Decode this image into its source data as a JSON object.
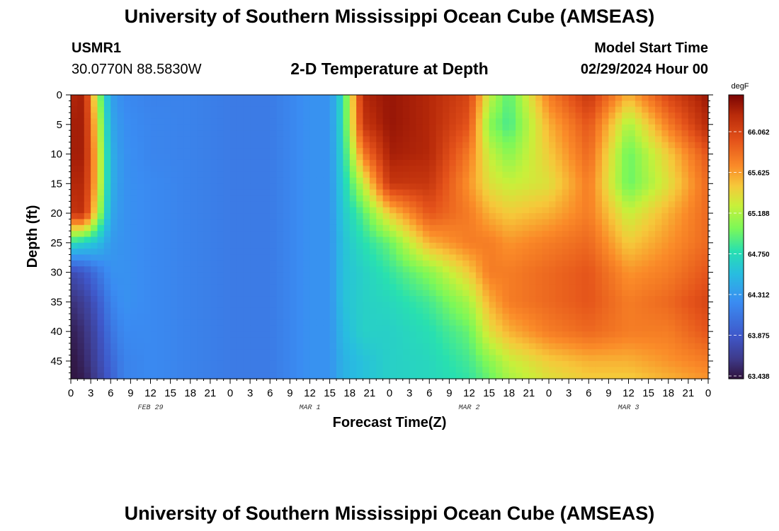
{
  "header": {
    "title": "University of Southern Mississippi Ocean Cube (AMSEAS)",
    "station": "USMR1",
    "coords": "30.0770N  88.5830W",
    "plot_title": "2-D Temperature at Depth",
    "model_label": "Model Start Time",
    "model_time": "02/29/2024 Hour 00"
  },
  "footer": {
    "title": "University of Southern Mississippi Ocean Cube (AMSEAS)"
  },
  "chart_data": {
    "type": "heatmap",
    "title": "2-D Temperature at Depth",
    "xlabel": "Forecast Time(Z)",
    "ylabel": "Depth (ft)",
    "x_tick_labels": [
      "0",
      "3",
      "6",
      "9",
      "12",
      "15",
      "18",
      "21",
      "0",
      "3",
      "6",
      "9",
      "12",
      "15",
      "18",
      "21",
      "0",
      "3",
      "6",
      "9",
      "12",
      "15",
      "18",
      "21",
      "0",
      "3",
      "6",
      "9",
      "12",
      "15",
      "18",
      "21",
      "0"
    ],
    "x_range_hours": [
      0,
      96
    ],
    "day_labels": [
      {
        "label": "FEB 29",
        "hour": 12
      },
      {
        "label": "MAR 1",
        "hour": 36
      },
      {
        "label": "MAR 2",
        "hour": 60
      },
      {
        "label": "MAR 3",
        "hour": 84
      }
    ],
    "y_ticks": [
      0,
      5,
      10,
      15,
      20,
      25,
      30,
      35,
      40,
      45
    ],
    "y_range": [
      0,
      48
    ],
    "y_inverted": true,
    "colorbar": {
      "unit": "degF",
      "labels": [
        "66.062",
        "65.625",
        "65.188",
        "64.750",
        "64.312",
        "63.875",
        "63.438"
      ],
      "min": 63.438,
      "max": 66.5
    },
    "grid": {
      "hours": [
        0,
        2,
        4,
        6,
        8,
        12,
        18,
        24,
        30,
        36,
        39,
        41,
        44,
        48,
        54,
        60,
        63,
        66,
        72,
        78,
        84,
        90,
        96
      ],
      "depths": [
        0,
        5,
        10,
        15,
        20,
        25,
        30,
        35,
        40,
        45,
        48
      ],
      "values": [
        [
          66.3,
          66.35,
          65.2,
          64.4,
          64.25,
          64.2,
          64.2,
          64.15,
          64.15,
          64.3,
          64.3,
          64.8,
          66.3,
          66.4,
          66.3,
          66.1,
          65.3,
          64.95,
          65.8,
          66.2,
          65.6,
          66.1,
          66.4
        ],
        [
          66.35,
          66.35,
          65.4,
          64.45,
          64.28,
          64.22,
          64.2,
          64.15,
          64.15,
          64.3,
          64.3,
          64.8,
          66.2,
          66.4,
          66.3,
          66.0,
          65.1,
          64.9,
          65.6,
          66.0,
          65.2,
          65.8,
          66.3
        ],
        [
          66.35,
          66.35,
          65.5,
          64.5,
          64.3,
          64.22,
          64.2,
          64.15,
          64.15,
          64.3,
          64.3,
          64.75,
          65.8,
          66.35,
          66.3,
          65.8,
          65.3,
          65.1,
          65.5,
          65.9,
          65.0,
          65.5,
          66.0
        ],
        [
          66.3,
          66.3,
          65.5,
          64.5,
          64.3,
          64.25,
          64.2,
          64.15,
          64.15,
          64.3,
          64.3,
          64.7,
          65.3,
          66.2,
          66.2,
          65.7,
          65.4,
          65.3,
          65.4,
          65.8,
          65.0,
          65.4,
          65.9
        ],
        [
          66.2,
          66.25,
          65.3,
          64.45,
          64.3,
          64.25,
          64.2,
          64.15,
          64.15,
          64.3,
          64.3,
          64.65,
          64.95,
          65.5,
          66.0,
          65.8,
          65.6,
          65.5,
          65.6,
          65.8,
          65.3,
          65.6,
          65.9
        ],
        [
          64.8,
          64.7,
          64.6,
          64.35,
          64.3,
          64.25,
          64.2,
          64.15,
          64.15,
          64.3,
          64.3,
          64.6,
          64.8,
          65.0,
          65.6,
          65.8,
          65.8,
          65.7,
          65.8,
          65.9,
          65.5,
          65.7,
          65.9
        ],
        [
          63.8,
          63.9,
          64.1,
          64.3,
          64.3,
          64.25,
          64.2,
          64.15,
          64.15,
          64.3,
          64.3,
          64.6,
          64.7,
          64.85,
          65.1,
          65.5,
          65.8,
          65.8,
          65.9,
          66.0,
          65.7,
          65.8,
          66.0
        ],
        [
          63.6,
          63.7,
          63.9,
          64.2,
          64.3,
          64.25,
          64.2,
          64.15,
          64.15,
          64.3,
          64.3,
          64.6,
          64.7,
          64.75,
          64.9,
          65.2,
          65.6,
          65.8,
          65.9,
          66.0,
          65.8,
          65.9,
          66.1
        ],
        [
          63.5,
          63.6,
          63.8,
          64.1,
          64.25,
          64.25,
          64.2,
          64.15,
          64.15,
          64.3,
          64.3,
          64.55,
          64.7,
          64.7,
          64.8,
          65.0,
          65.4,
          65.6,
          65.8,
          65.9,
          65.8,
          65.8,
          66.0
        ],
        [
          63.45,
          63.55,
          63.75,
          64.0,
          64.2,
          64.25,
          64.2,
          64.15,
          64.15,
          64.3,
          64.3,
          64.5,
          64.6,
          64.7,
          64.75,
          64.9,
          65.1,
          65.3,
          65.5,
          65.6,
          65.6,
          65.7,
          65.8
        ],
        [
          63.45,
          63.5,
          63.7,
          63.95,
          64.2,
          64.25,
          64.2,
          64.15,
          64.15,
          64.3,
          64.3,
          64.5,
          64.6,
          64.7,
          64.75,
          64.85,
          65.0,
          65.2,
          65.4,
          65.5,
          65.5,
          65.6,
          65.7
        ]
      ]
    }
  }
}
